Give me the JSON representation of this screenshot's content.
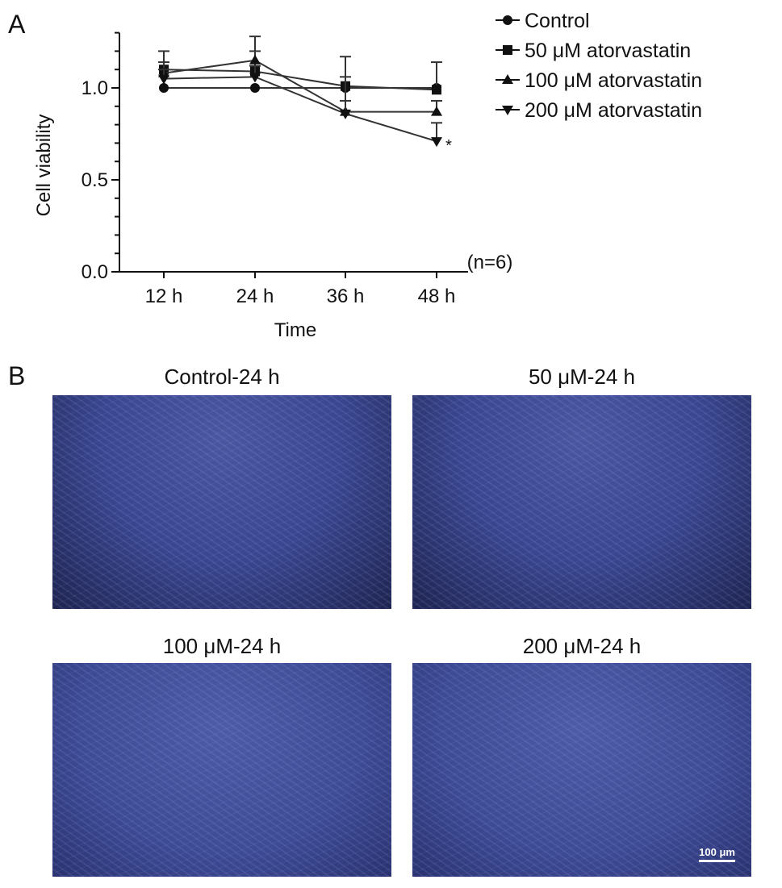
{
  "panel_a_label": "A",
  "panel_b_label": "B",
  "chart_data": {
    "type": "line",
    "ylabel": "Cell viability",
    "xlabel": "Time",
    "categories": [
      "12 h",
      "24 h",
      "36 h",
      "48 h"
    ],
    "ylim": [
      0,
      1.3
    ],
    "yticks": [
      "0.0",
      "0.5",
      "1.0"
    ],
    "ytick_values": [
      0,
      0.5,
      1.0
    ],
    "annotation": "(n=6)",
    "significance": "*",
    "legend_position": "top-right",
    "series": [
      {
        "name": "Control",
        "marker": "circle",
        "values": [
          1.0,
          1.0,
          1.0,
          1.0
        ],
        "err": [
          0,
          0,
          0,
          0
        ]
      },
      {
        "name": "50 μM atorvastatin",
        "marker": "square",
        "values": [
          1.1,
          1.09,
          1.01,
          0.99
        ],
        "err": [
          0.1,
          0.11,
          0.16,
          0.15
        ]
      },
      {
        "name": "100 μM atorvastatin",
        "marker": "triangle-up",
        "values": [
          1.08,
          1.15,
          0.87,
          0.87
        ],
        "err": [
          0.06,
          0.13,
          0.06,
          0.06
        ]
      },
      {
        "name": "200 μM atorvastatin",
        "marker": "triangle-down",
        "values": [
          1.05,
          1.06,
          0.86,
          0.71
        ],
        "err": [
          0.05,
          0.06,
          0.2,
          0.1
        ]
      }
    ]
  },
  "images": [
    {
      "title": "Control-24 h"
    },
    {
      "title": "50 μM-24 h"
    },
    {
      "title": "100 μM-24 h"
    },
    {
      "title": "200 μM-24 h"
    }
  ],
  "scale_bar": "100 μm"
}
